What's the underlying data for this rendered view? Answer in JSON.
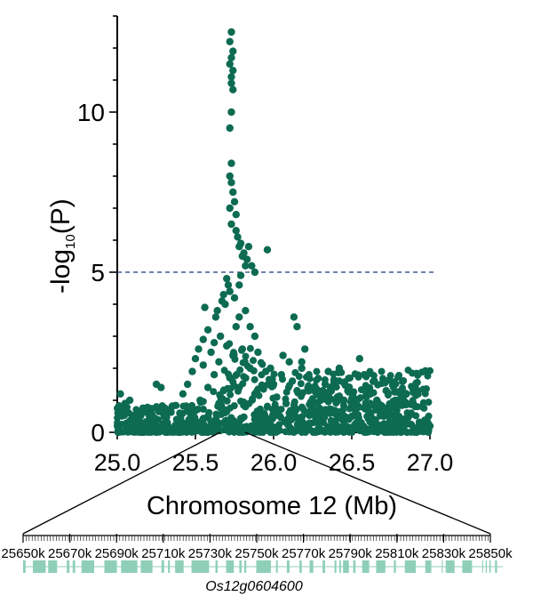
{
  "chart_data": {
    "type": "scatter",
    "title": "",
    "xlabel": "Chromosome 12 (Mb)",
    "ylabel": {
      "prefix": "-log",
      "subscript": "10",
      "suffix": "(P)"
    },
    "xlim": [
      25.0,
      27.0
    ],
    "ylim": [
      0,
      13
    ],
    "xticks": [
      25.0,
      25.5,
      26.0,
      26.5,
      27.0
    ],
    "xtick_labels": [
      "25.0",
      "25.5",
      "26.0",
      "26.5",
      "27.0"
    ],
    "yticks": [
      0,
      5,
      10
    ],
    "ytick_labels": [
      "0",
      "5",
      "10"
    ],
    "threshold": 5,
    "color": "#0d6b52",
    "peak": {
      "x": 25.73,
      "y": 12.5
    },
    "points": [
      [
        25.73,
        12.5
      ],
      [
        25.72,
        12.2
      ],
      [
        25.74,
        11.9
      ],
      [
        25.73,
        11.7
      ],
      [
        25.72,
        11.5
      ],
      [
        25.74,
        11.3
      ],
      [
        25.73,
        11.1
      ],
      [
        25.73,
        10.9
      ],
      [
        25.74,
        10.7
      ],
      [
        25.73,
        10.0
      ],
      [
        25.72,
        9.5
      ],
      [
        25.73,
        8.4
      ],
      [
        25.72,
        8.0
      ],
      [
        25.73,
        7.8
      ],
      [
        25.74,
        7.5
      ],
      [
        25.75,
        7.2
      ],
      [
        25.72,
        7.0
      ],
      [
        25.76,
        6.8
      ],
      [
        25.73,
        6.5
      ],
      [
        25.78,
        5.8
      ],
      [
        25.84,
        5.8
      ],
      [
        25.96,
        5.7
      ],
      [
        25.8,
        5.5
      ],
      [
        25.82,
        5.2
      ],
      [
        25.88,
        5.0
      ],
      [
        25.7,
        4.8
      ],
      [
        25.78,
        4.6
      ],
      [
        25.72,
        4.4
      ],
      [
        25.68,
        4.3
      ],
      [
        25.75,
        4.2
      ],
      [
        25.69,
        4.0
      ],
      [
        25.82,
        3.8
      ],
      [
        25.56,
        3.9
      ],
      [
        25.78,
        3.6
      ],
      [
        25.63,
        3.6
      ],
      [
        25.85,
        3.3
      ],
      [
        25.76,
        3.3
      ],
      [
        25.58,
        3.2
      ],
      [
        25.66,
        3.0
      ],
      [
        25.88,
        3.0
      ],
      [
        25.55,
        2.9
      ],
      [
        25.62,
        2.8
      ],
      [
        25.7,
        2.7
      ],
      [
        25.8,
        2.6
      ],
      [
        25.52,
        2.6
      ],
      [
        25.6,
        2.5
      ],
      [
        25.74,
        2.4
      ],
      [
        25.5,
        2.3
      ],
      [
        25.9,
        2.5
      ],
      [
        25.65,
        2.2
      ],
      [
        25.55,
        2.1
      ],
      [
        25.85,
        2.0
      ],
      [
        25.48,
        1.9
      ],
      [
        25.62,
        1.8
      ],
      [
        25.72,
        1.7
      ],
      [
        25.95,
        1.9
      ],
      [
        25.45,
        1.5
      ],
      [
        25.58,
        1.4
      ],
      [
        25.68,
        1.3
      ],
      [
        25.78,
        1.4
      ],
      [
        25.88,
        1.2
      ],
      [
        25.42,
        1.2
      ],
      [
        25.53,
        1.0
      ],
      [
        25.65,
        0.9
      ],
      [
        25.82,
        0.8
      ],
      [
        26.0,
        1.5
      ],
      [
        26.05,
        1.8
      ],
      [
        26.1,
        2.2
      ],
      [
        26.12,
        1.6
      ],
      [
        26.18,
        2.0
      ],
      [
        26.02,
        1.1
      ],
      [
        26.08,
        0.9
      ],
      [
        26.15,
        1.3
      ],
      [
        26.2,
        2.6
      ],
      [
        26.15,
        3.3
      ],
      [
        26.13,
        3.6
      ],
      [
        26.18,
        2.2
      ],
      [
        26.22,
        1.4
      ],
      [
        26.06,
        2.4
      ],
      [
        25.98,
        2.0
      ],
      [
        26.3,
        1.0
      ],
      [
        26.35,
        1.9
      ],
      [
        26.4,
        1.6
      ],
      [
        26.42,
        2.0
      ],
      [
        26.48,
        1.4
      ],
      [
        26.55,
        2.3
      ],
      [
        26.58,
        1.8
      ],
      [
        26.62,
        1.2
      ],
      [
        26.66,
        1.0
      ],
      [
        26.72,
        1.3
      ],
      [
        26.78,
        1.0
      ],
      [
        26.85,
        1.2
      ],
      [
        26.92,
        1.3
      ],
      [
        26.95,
        0.8
      ],
      [
        26.33,
        1.5
      ],
      [
        26.45,
        1.0
      ],
      [
        26.52,
        0.9
      ],
      [
        26.6,
        0.7
      ],
      [
        26.7,
        0.6
      ],
      [
        26.8,
        0.5
      ],
      [
        25.02,
        1.2
      ],
      [
        25.05,
        0.9
      ],
      [
        25.08,
        1.0
      ],
      [
        25.03,
        0.7
      ],
      [
        25.1,
        0.5
      ],
      [
        25.15,
        0.6
      ],
      [
        25.25,
        1.5
      ],
      [
        25.28,
        1.4
      ],
      [
        25.2,
        0.7
      ],
      [
        25.3,
        0.5
      ],
      [
        25.35,
        0.8
      ],
      [
        25.4,
        0.6
      ],
      [
        25.45,
        0.7
      ],
      [
        25.12,
        0.3
      ],
      [
        25.22,
        0.4
      ],
      [
        25.32,
        0.3
      ],
      [
        25.38,
        0.4
      ],
      [
        25.48,
        0.3
      ],
      [
        25.58,
        0.5
      ],
      [
        25.62,
        0.3
      ],
      [
        25.88,
        0.4
      ],
      [
        25.92,
        0.6
      ],
      [
        25.98,
        0.4
      ],
      [
        26.04,
        0.5
      ],
      [
        26.1,
        0.6
      ],
      [
        26.16,
        0.4
      ],
      [
        26.24,
        0.7
      ],
      [
        26.28,
        0.3
      ],
      [
        26.36,
        0.6
      ],
      [
        26.44,
        0.4
      ],
      [
        26.5,
        0.5
      ],
      [
        26.56,
        0.3
      ],
      [
        26.64,
        0.4
      ],
      [
        26.74,
        0.3
      ],
      [
        26.84,
        0.4
      ],
      [
        26.88,
        0.6
      ],
      [
        26.98,
        0.4
      ],
      [
        27.0,
        0.2
      ],
      [
        25.18,
        0.2
      ],
      [
        25.06,
        0.2
      ],
      [
        25.76,
        6.3
      ],
      [
        25.77,
        6.1
      ],
      [
        25.79,
        5.9
      ],
      [
        25.81,
        5.6
      ],
      [
        25.83,
        5.4
      ],
      [
        25.86,
        5.2
      ],
      [
        25.79,
        4.9
      ],
      [
        25.71,
        4.6
      ],
      [
        25.67,
        4.1
      ],
      [
        25.64,
        3.8
      ]
    ],
    "gene_track": {
      "ticks": [
        "25650k",
        "25670k",
        "25690k",
        "25710k",
        "25730k",
        "25750k",
        "25770k",
        "25790k",
        "25810k",
        "25830k",
        "25850k"
      ],
      "gene": "Os12g0604600"
    }
  }
}
